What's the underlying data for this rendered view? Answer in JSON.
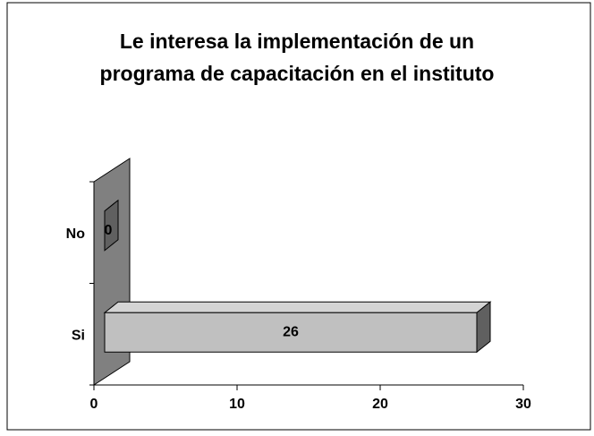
{
  "chart_data": {
    "type": "bar3d_horizontal",
    "title": "Le interesa la implementación de un programa de capacitación en el instituto",
    "categories": [
      "Si",
      "No"
    ],
    "values": [
      26,
      0
    ],
    "color": "#c0c0c0",
    "xlim": [
      0,
      30
    ],
    "xticks": [
      0,
      10,
      20,
      30
    ]
  }
}
